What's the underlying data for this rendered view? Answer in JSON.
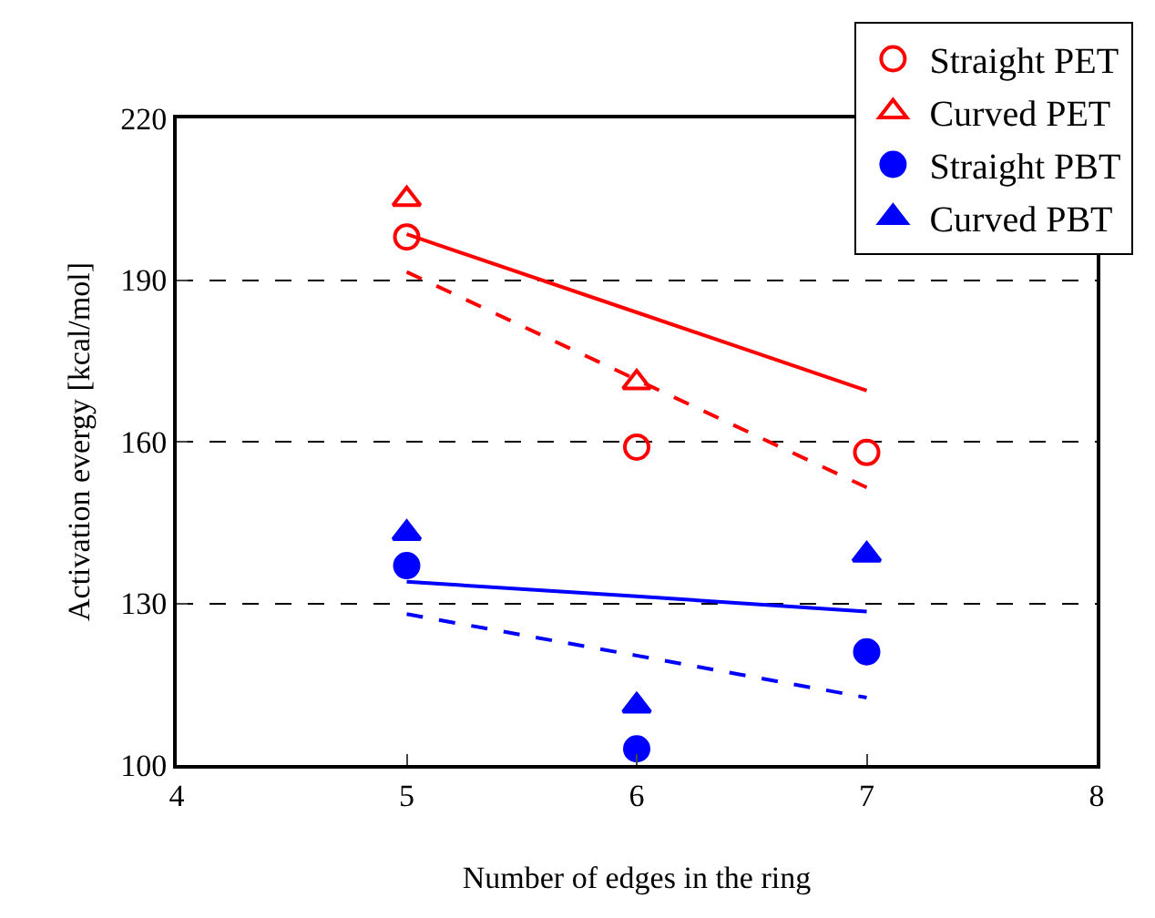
{
  "chart_data": {
    "type": "scatter",
    "xlabel": "Number of edges in the ring",
    "ylabel": "Activation evergy [kcal/mol]",
    "x": [
      5,
      6,
      7
    ],
    "series": [
      {
        "name": "Straight PET",
        "color": "#ff0000",
        "marker": "circle-open",
        "values": [
          198,
          159,
          158
        ]
      },
      {
        "name": "Curved PET",
        "color": "#ff0000",
        "marker": "triangle-open",
        "values": [
          205,
          171,
          null
        ]
      },
      {
        "name": "Straight PBT",
        "color": "#0000ff",
        "marker": "circle",
        "values": [
          137,
          103,
          121
        ]
      },
      {
        "name": "Curved PBT",
        "color": "#0000ff",
        "marker": "triangle",
        "values": [
          143,
          111,
          139
        ]
      },
      {
        "type": "line",
        "color": "#ff0000",
        "line_style": "solid",
        "values": [
          198.5,
          184,
          169.5
        ]
      },
      {
        "type": "line",
        "color": "#ff0000",
        "line_style": "dashed",
        "values": [
          191.5,
          171.5,
          151.5
        ]
      },
      {
        "type": "line",
        "color": "#0000ff",
        "line_style": "solid",
        "values": [
          134,
          131.3,
          128.5
        ]
      },
      {
        "type": "line",
        "color": "#0000ff",
        "line_style": "dashed",
        "values": [
          128,
          120.3,
          112.5
        ]
      }
    ],
    "xlim": [
      4,
      8
    ],
    "xticks": [
      4,
      5,
      6,
      7,
      8
    ],
    "ylim": [
      100,
      220
    ],
    "yticks": [
      100,
      130,
      160,
      190,
      220
    ],
    "grid": "y",
    "legend": "top right"
  }
}
